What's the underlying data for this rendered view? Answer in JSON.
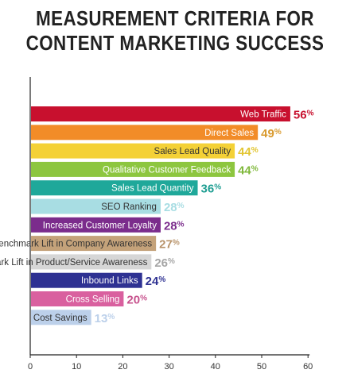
{
  "title_line1": "MEASUREMENT CRITERIA FOR",
  "title_line2": "CONTENT MARKETING SUCCESS",
  "chart_data": {
    "type": "bar",
    "orientation": "horizontal",
    "title": "MEASUREMENT CRITERIA FOR CONTENT MARKETING SUCCESS",
    "xlabel": "",
    "ylabel": "",
    "xlim": [
      0,
      60
    ],
    "x_ticks": [
      "0",
      "10",
      "20",
      "30",
      "40",
      "50",
      "60"
    ],
    "grid": false,
    "categories": [
      "Web Traffic",
      "Direct Sales",
      "Sales Lead Quality",
      "Qualitative Customer Feedback",
      "Sales Lead Quantity",
      "SEO Ranking",
      "Increased Customer Loyalty",
      "Benchmark Lift in Company Awareness",
      "Benchmark Lift in Product/Service Awareness",
      "Inbound Links",
      "Cross Selling",
      "Cost Savings"
    ],
    "values": [
      56,
      49,
      44,
      44,
      36,
      28,
      28,
      27,
      26,
      24,
      20,
      13
    ],
    "value_labels": [
      "56%",
      "49%",
      "44%",
      "44%",
      "36%",
      "28%",
      "28%",
      "27%",
      "26%",
      "24%",
      "20%",
      "13%"
    ],
    "bar_colors": [
      "#c8102e",
      "#f28c28",
      "#f4d136",
      "#8dc63f",
      "#1fa89a",
      "#a8dde3",
      "#7b2c8c",
      "#c4a27a",
      "#d6d6d6",
      "#2e3192",
      "#d9609f",
      "#bcd0ea"
    ],
    "label_colors": [
      "#ffffff",
      "#ffffff",
      "#333333",
      "#ffffff",
      "#ffffff",
      "#333333",
      "#ffffff",
      "#333333",
      "#333333",
      "#ffffff",
      "#ffffff",
      "#333333"
    ],
    "pct_colors": [
      "#c8102e",
      "#d99a2e",
      "#e2c531",
      "#7fb83a",
      "#1f9e92",
      "#a8dde3",
      "#7b2c8c",
      "#b8936a",
      "#a6a6a6",
      "#2e3192",
      "#c7528d",
      "#bcd0ea"
    ]
  }
}
